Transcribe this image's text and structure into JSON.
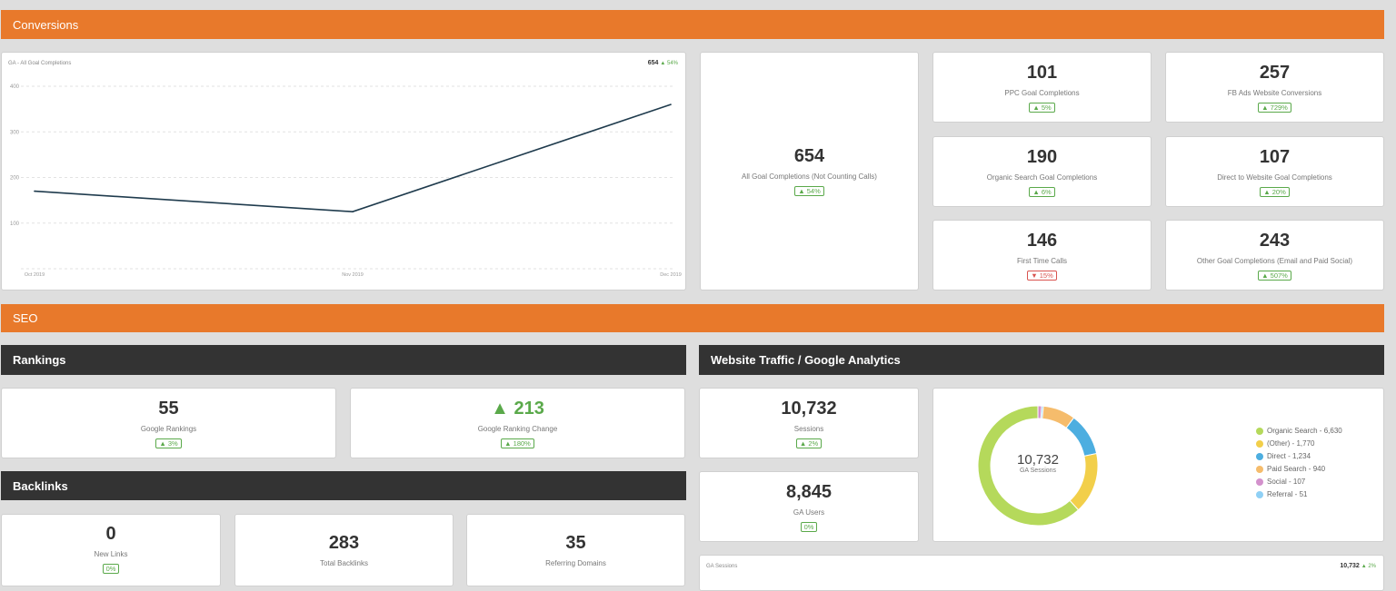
{
  "conversions": {
    "title": "Conversions",
    "chart": {
      "title": "GA - All Goal Completions",
      "total": "654",
      "change": "▲ 54%"
    },
    "main_kpi": {
      "value": "654",
      "label": "All Goal Completions (Not Counting Calls)",
      "change": "▲ 54%",
      "direction": "up"
    },
    "kpis": [
      {
        "value": "101",
        "label": "PPC Goal Completions",
        "change": "▲ 5%",
        "direction": "up"
      },
      {
        "value": "257",
        "label": "FB Ads Website Conversions",
        "change": "▲ 729%",
        "direction": "up"
      },
      {
        "value": "190",
        "label": "Organic Search Goal Completions",
        "change": "▲ 6%",
        "direction": "up"
      },
      {
        "value": "107",
        "label": "Direct to Website Goal Completions",
        "change": "▲ 20%",
        "direction": "up"
      },
      {
        "value": "146",
        "label": "First Time Calls",
        "change": "▼ 15%",
        "direction": "down"
      },
      {
        "value": "243",
        "label": "Other Goal Completions (Email and Paid Social)",
        "change": "▲ 507%",
        "direction": "up"
      }
    ]
  },
  "seo": {
    "title": "SEO",
    "rankings": {
      "title": "Rankings",
      "google_rankings": {
        "value": "55",
        "label": "Google Rankings",
        "change": "▲ 3%"
      },
      "ranking_change": {
        "value": "▲ 213",
        "label": "Google Ranking Change",
        "change": "▲ 180%"
      }
    },
    "backlinks": {
      "title": "Backlinks",
      "items": [
        {
          "value": "0",
          "label": "New Links",
          "change": "0%"
        },
        {
          "value": "283",
          "label": "Total Backlinks"
        },
        {
          "value": "35",
          "label": "Referring Domains"
        }
      ]
    },
    "traffic": {
      "title": "Website Traffic / Google Analytics",
      "sessions": {
        "value": "10,732",
        "label": "Sessions",
        "change": "▲ 2%"
      },
      "users": {
        "value": "8,845",
        "label": "GA Users",
        "change": "0%"
      },
      "donut": {
        "center_value": "10,732",
        "center_label": "GA Sessions",
        "legend": [
          "Organic Search - 6,630",
          "(Other) - 1,770",
          "Direct - 1,234",
          "Paid Search - 940",
          "Social - 107",
          "Referral - 51"
        ]
      },
      "sessions_chart": {
        "title": "GA Sessions",
        "total": "10,732",
        "change": "▲ 2%"
      }
    }
  },
  "chart_data": [
    {
      "type": "line",
      "title": "GA - All Goal Completions",
      "categories": [
        "Oct 2019",
        "Nov 2019",
        "Dec 2019"
      ],
      "values": [
        170,
        125,
        360
      ],
      "ylim": [
        0,
        400
      ],
      "yticks": [
        100,
        200,
        300,
        400
      ],
      "grid": true,
      "color": "#1f3b4d"
    },
    {
      "type": "pie",
      "donut": true,
      "categories": [
        "Organic Search",
        "(Other)",
        "Direct",
        "Paid Search",
        "Social",
        "Referral"
      ],
      "values": [
        6630,
        1770,
        1234,
        940,
        107,
        51
      ],
      "colors": [
        "#b5d95b",
        "#f2cf4a",
        "#4daee0",
        "#f5bc6c",
        "#d391cc",
        "#8fd0f5"
      ]
    }
  ],
  "colors": {
    "accent": "#e8792b",
    "header_dark": "#333333",
    "up": "#5aa94a",
    "down": "#d9534f"
  }
}
